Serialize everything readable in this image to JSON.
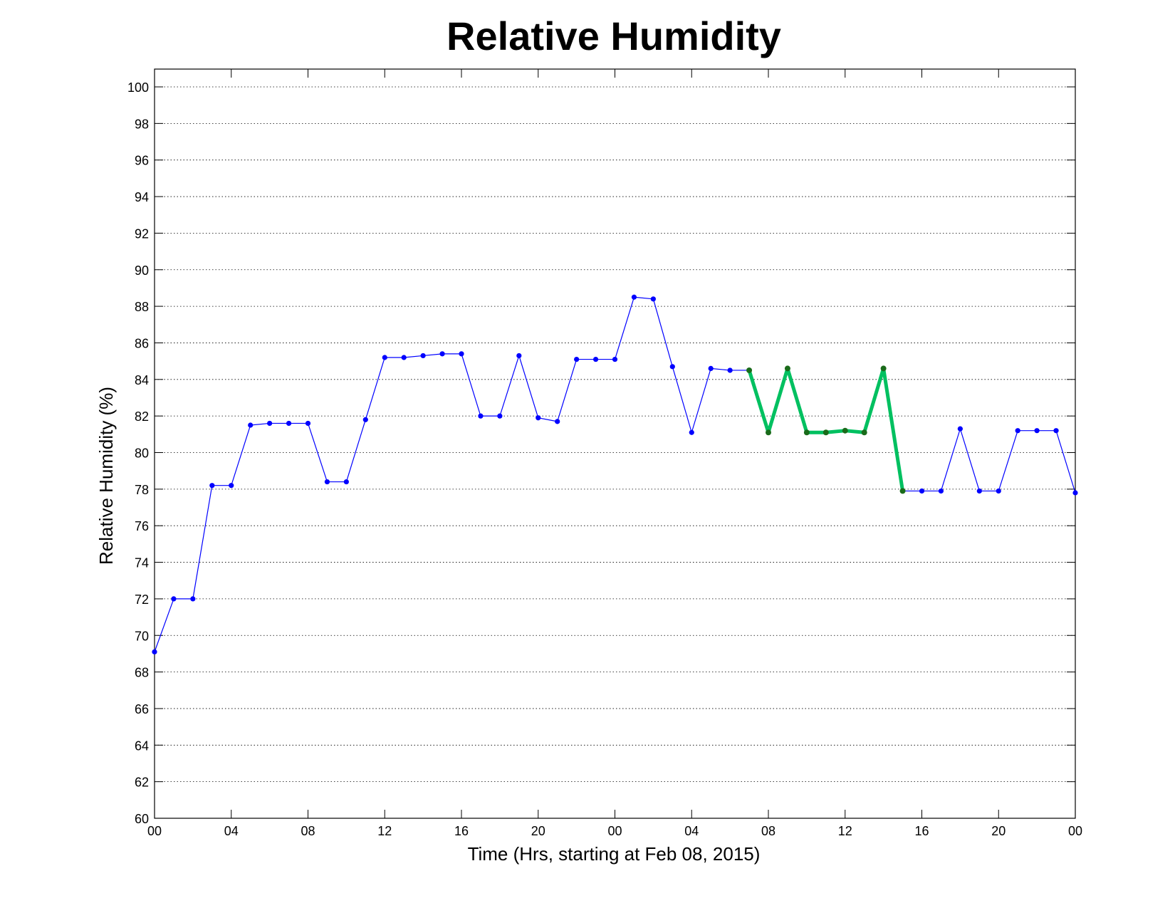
{
  "chart_data": {
    "type": "line",
    "title": "Relative Humidity",
    "xlabel": "Time (Hrs, starting at Feb 08, 2015)",
    "ylabel": "Relative Humidity (%)",
    "xlim": [
      0,
      48
    ],
    "ylim": [
      60,
      100
    ],
    "grid": true,
    "x_ticks": [
      0,
      4,
      8,
      12,
      16,
      20,
      24,
      28,
      32,
      36,
      40,
      44,
      48
    ],
    "x_tick_labels": [
      "00",
      "04",
      "08",
      "12",
      "16",
      "20",
      "00",
      "04",
      "08",
      "12",
      "16",
      "20",
      "00"
    ],
    "y_ticks": [
      60,
      62,
      64,
      66,
      68,
      70,
      72,
      74,
      76,
      78,
      80,
      82,
      84,
      86,
      88,
      90,
      92,
      94,
      96,
      98,
      100
    ],
    "series": [
      {
        "color": "#0000ff",
        "style": "thin line with dot markers",
        "x": [
          0,
          1,
          2,
          3,
          4,
          5,
          6,
          7,
          8,
          9,
          10,
          11,
          12,
          13,
          14,
          15,
          16,
          17,
          18,
          19,
          20,
          21,
          22,
          23,
          24,
          25,
          26,
          27,
          28,
          29,
          30,
          31,
          32,
          33,
          34,
          35,
          36,
          37,
          38,
          39,
          40,
          41,
          42,
          43,
          44,
          45,
          46,
          47,
          48
        ],
        "values": [
          69.1,
          72.0,
          72.0,
          78.2,
          78.2,
          81.5,
          81.6,
          81.6,
          81.6,
          78.4,
          78.4,
          81.8,
          85.2,
          85.2,
          85.3,
          85.4,
          85.4,
          82.0,
          82.0,
          85.3,
          81.9,
          81.7,
          85.1,
          85.1,
          85.1,
          88.5,
          88.4,
          84.7,
          81.1,
          84.6,
          84.5,
          84.5,
          81.1,
          84.6,
          81.1,
          81.1,
          81.2,
          81.1,
          84.6,
          77.9,
          77.9,
          77.9,
          81.3,
          77.9,
          77.9,
          81.2,
          81.2,
          81.2,
          77.8
        ]
      },
      {
        "color": "#00c060",
        "marker_color": "#1a6b1a",
        "style": "thick highlighted segment",
        "x": [
          31,
          32,
          33,
          34,
          35,
          36,
          37,
          38,
          39
        ],
        "values": [
          84.5,
          81.1,
          84.6,
          81.1,
          81.1,
          81.2,
          81.1,
          84.6,
          77.9
        ]
      }
    ]
  }
}
